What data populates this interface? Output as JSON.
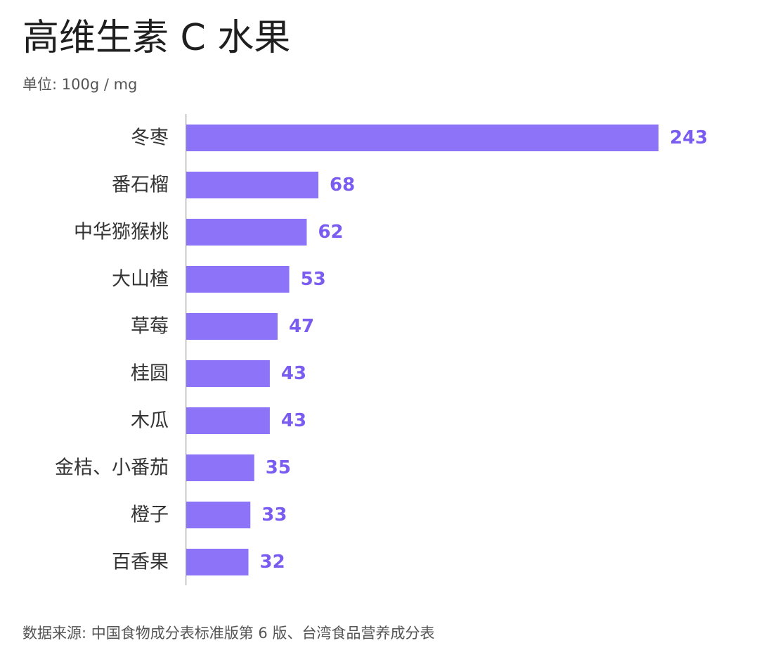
{
  "header": {
    "title": "高维生素 C 水果",
    "subtitle": "单位: 100g / mg"
  },
  "footer": {
    "source": "数据来源: 中国食物成分表标准版第 6 版、台湾食品营养成分表"
  },
  "colors": {
    "bar": "#8c73f8",
    "value_label": "#7b5cf0",
    "axis": "#c8c8c8"
  },
  "chart_data": {
    "type": "bar",
    "orientation": "horizontal",
    "title": "高维生素 C 水果",
    "subtitle": "单位: 100g / mg",
    "categories": [
      "冬枣",
      "番石榴",
      "中华猕猴桃",
      "大山楂",
      "草莓",
      "桂圆",
      "木瓜",
      "金桔、小番茄",
      "橙子",
      "百香果"
    ],
    "values": [
      243,
      68,
      62,
      53,
      47,
      43,
      43,
      35,
      33,
      32
    ],
    "xlim": [
      0,
      243
    ],
    "grid": false,
    "legend": "none"
  }
}
